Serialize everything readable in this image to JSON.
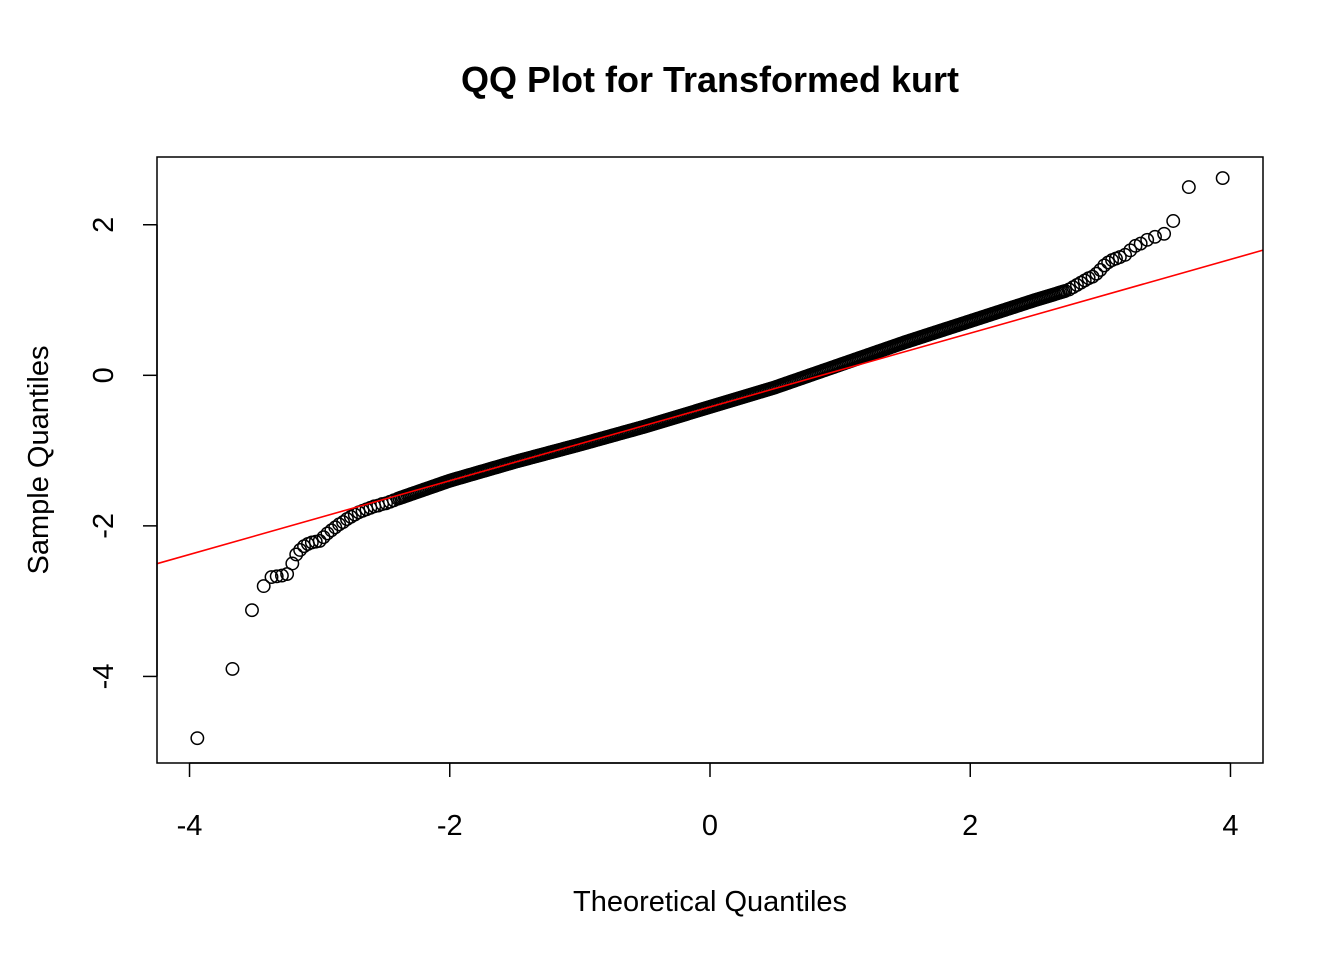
{
  "chart_data": {
    "type": "scatter",
    "title": "QQ Plot for Transformed kurt",
    "xlabel": "Theoretical Quantiles",
    "ylabel": "Sample Quantiles",
    "xlim": [
      -4.25,
      4.25
    ],
    "ylim": [
      -5.15,
      2.9
    ],
    "xticks": [
      -4,
      -2,
      0,
      2,
      4
    ],
    "yticks": [
      -4,
      -2,
      0,
      2
    ],
    "grid": false,
    "legend": "none",
    "point_color": "#000000",
    "line_color": "#ff0000",
    "reference_line": {
      "intercept": -0.42,
      "slope": 0.49
    },
    "tail_points": {
      "x": [
        -3.94,
        -3.67,
        -3.52,
        -3.43,
        -3.37,
        -3.33,
        -3.29,
        -3.25,
        -3.21,
        -3.18,
        -3.15,
        -3.12,
        -3.09,
        -3.06,
        -3.03,
        -3.0,
        -2.97,
        -2.94,
        -2.91,
        -2.88,
        -2.85,
        -2.82,
        -2.79,
        -2.76,
        -2.73,
        -2.7,
        -2.67,
        -2.64,
        -2.61,
        -2.58,
        -2.55,
        -2.52,
        -2.49,
        -2.46,
        -2.43,
        -2.4,
        2.73,
        2.76,
        2.79,
        2.82,
        2.85,
        2.88,
        2.91,
        2.94,
        2.97,
        3.0,
        3.03,
        3.06,
        3.09,
        3.12,
        3.15,
        3.19,
        3.23,
        3.27,
        3.31,
        3.36,
        3.42,
        3.49,
        3.56,
        3.68,
        3.94
      ],
      "y": [
        -4.82,
        -3.9,
        -3.12,
        -2.8,
        -2.68,
        -2.67,
        -2.66,
        -2.64,
        -2.5,
        -2.38,
        -2.32,
        -2.27,
        -2.24,
        -2.22,
        -2.21,
        -2.2,
        -2.15,
        -2.1,
        -2.06,
        -2.02,
        -1.98,
        -1.95,
        -1.91,
        -1.88,
        -1.85,
        -1.82,
        -1.8,
        -1.78,
        -1.76,
        -1.74,
        -1.73,
        -1.71,
        -1.7,
        -1.68,
        -1.66,
        -1.64,
        1.12,
        1.14,
        1.17,
        1.2,
        1.23,
        1.26,
        1.29,
        1.31,
        1.35,
        1.4,
        1.46,
        1.5,
        1.53,
        1.55,
        1.57,
        1.6,
        1.66,
        1.72,
        1.75,
        1.8,
        1.84,
        1.88,
        2.05,
        2.5,
        2.62
      ]
    },
    "body_knots": {
      "x": [
        -2.4,
        -2.2,
        -2.0,
        -1.5,
        -1.0,
        -0.5,
        0.0,
        0.5,
        1.0,
        1.5,
        2.0,
        2.5,
        2.73
      ],
      "y": [
        -1.64,
        -1.52,
        -1.4,
        -1.15,
        -0.92,
        -0.68,
        -0.42,
        -0.16,
        0.14,
        0.44,
        0.72,
        1.0,
        1.12
      ]
    },
    "body_point_count": 400
  }
}
